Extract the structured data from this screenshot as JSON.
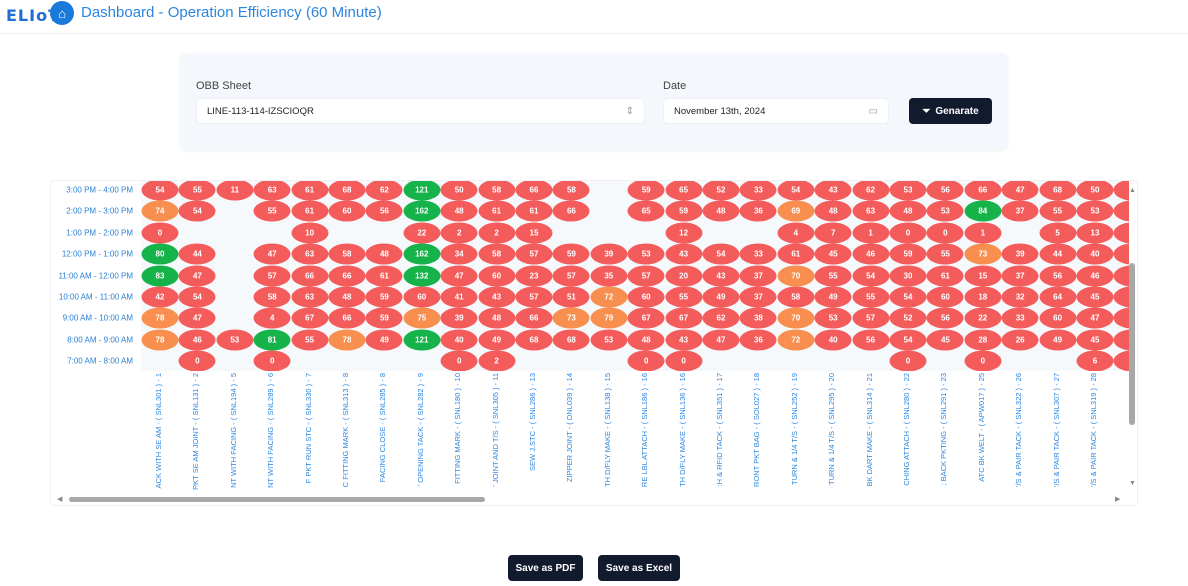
{
  "header": {
    "logo": "ELIoT",
    "title": "Dashboard - Operation Efficiency (60 Minute)"
  },
  "filters": {
    "obb_label": "OBB Sheet",
    "obb_value": "LINE-113-114-IZSCIOQR",
    "date_label": "Date",
    "date_value": "November 13th, 2024",
    "generate_label": "Genarate"
  },
  "colors": {
    "red": "#f45c5c",
    "orange": "#f98f4e",
    "green": "#16b24a",
    "empty": "#f6f9fc"
  },
  "heatmap": {
    "rows": [
      "3:00 PM - 4:00 PM",
      "2:00 PM - 3:00 PM",
      "1:00 PM - 2:00 PM",
      "12:00 PM - 1:00 PM",
      "11:00 AM - 12:00 PM",
      "10:00 AM - 11:00 AM",
      "9:00 AM - 10:00 AM",
      "8:00 AM - 9:00 AM",
      "7:00 AM - 8:00 AM"
    ],
    "columns": [
      "ACK WITH SE AM - ( SNL301 ) - 1",
      "PKT SE AM JOINT - ( SNL131 ) - 2",
      "NT WITH FACING - ( SNL194 ) - 5",
      "NT WITH FACING - ( SNL289 ) - 6",
      "F PKT RUN STC - ( SNL330 ) - 7",
      "C FITTING MARK - ( SNL313 ) - 8",
      "FACING CLOSE - ( SNL285 ) - 8",
      "' OPENING TACK - ( SNL282 ) - 9",
      "FITTING MARK - ( SNL180 ) - 10",
      "' JOINT AND T/S - ( SNL305 ) - 11",
      "SEW J.STC - ( SNL286 ) - 13",
      "ZIPPER JOINT - ( DNL039 ) - 14",
      "TH D/FLY MAKE - ( SNL138 ) - 15",
      "RE LBL ATTACH - ( SNL186 ) - 16",
      "TH D/FLY MAKE - ( SNL136 ) - 16",
      ":H & RFID TACK - ( SNL351 ) - 17",
      "RONT PKT BAG - ( SOL027 ) - 18",
      "TURN & 1/4 T/S - ( SNL252 ) - 19",
      "TURN & 1/4 T/S - ( SNL295 ) - 20",
      "BK DART MAKE - ( SNL314 ) - 21",
      "CHING ATTACH - ( SNL280 ) - 22",
      "; BACK PKTING - ( SNL291 ) - 23",
      "ATC BK WELT - ( APW017 ) - 25",
      "'/S & PAIR TACK - ( SNL322 ) - 26",
      "'/S & PAIR TACK - ( SNL307 ) - 27",
      "'/S & PAIR TACK - ( SNL319 ) - 28"
    ],
    "values": [
      [
        54,
        55,
        11,
        63,
        61,
        68,
        62,
        121,
        50,
        58,
        66,
        58,
        null,
        59,
        65,
        52,
        33,
        54,
        43,
        62,
        53,
        56,
        66,
        47,
        68,
        50
      ],
      [
        74,
        54,
        null,
        55,
        61,
        60,
        56,
        162,
        48,
        61,
        61,
        66,
        null,
        65,
        59,
        48,
        36,
        69,
        48,
        63,
        48,
        53,
        84,
        37,
        55,
        53
      ],
      [
        0,
        null,
        null,
        null,
        10,
        null,
        null,
        22,
        2,
        2,
        15,
        null,
        null,
        null,
        12,
        null,
        null,
        4,
        7,
        1,
        0,
        0,
        1,
        null,
        5,
        13
      ],
      [
        80,
        44,
        null,
        47,
        63,
        58,
        48,
        162,
        34,
        58,
        57,
        59,
        39,
        53,
        43,
        54,
        33,
        61,
        45,
        46,
        59,
        55,
        73,
        39,
        44,
        40
      ],
      [
        83,
        47,
        null,
        57,
        66,
        66,
        61,
        132,
        47,
        60,
        23,
        57,
        35,
        57,
        20,
        43,
        37,
        70,
        55,
        54,
        30,
        61,
        15,
        37,
        56,
        46
      ],
      [
        42,
        54,
        null,
        58,
        63,
        48,
        59,
        60,
        41,
        43,
        57,
        51,
        72,
        60,
        55,
        49,
        37,
        58,
        49,
        55,
        54,
        60,
        18,
        32,
        64,
        45
      ],
      [
        78,
        47,
        null,
        4,
        67,
        66,
        59,
        75,
        39,
        48,
        66,
        73,
        79,
        67,
        67,
        62,
        38,
        70,
        53,
        57,
        52,
        56,
        22,
        33,
        60,
        47
      ],
      [
        78,
        46,
        53,
        81,
        55,
        78,
        49,
        121,
        40,
        49,
        68,
        68,
        53,
        48,
        43,
        47,
        36,
        72,
        40,
        56,
        54,
        45,
        28,
        26,
        49,
        45
      ],
      [
        null,
        0,
        null,
        0,
        null,
        null,
        null,
        null,
        0,
        2,
        null,
        null,
        null,
        0,
        0,
        null,
        null,
        null,
        null,
        null,
        0,
        null,
        0,
        null,
        null,
        6
      ]
    ]
  },
  "actions": {
    "pdf": "Save as PDF",
    "excel": "Save as Excel"
  }
}
